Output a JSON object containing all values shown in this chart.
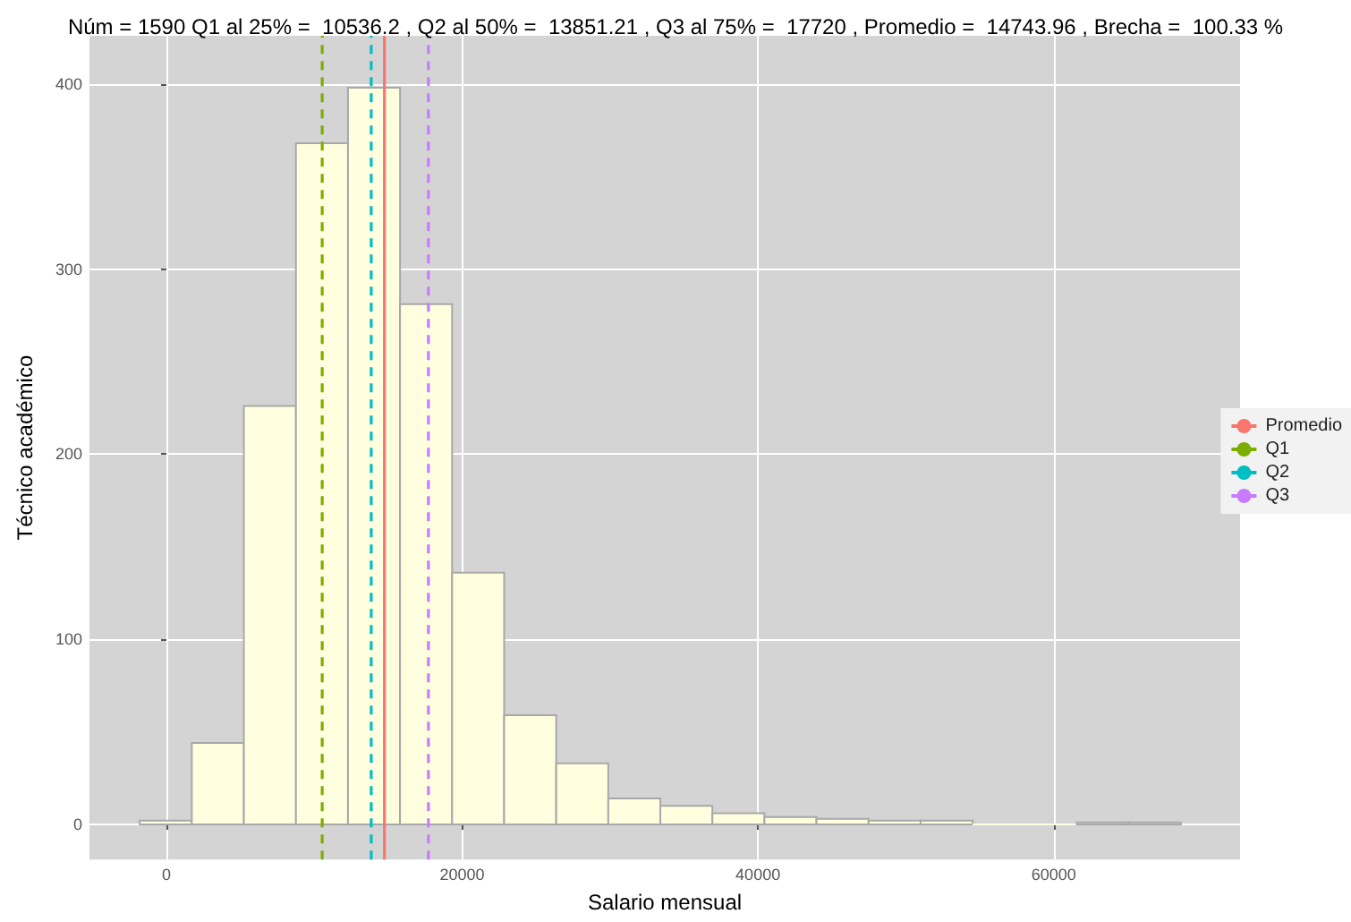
{
  "chart_data": {
    "type": "histogram",
    "title": "Núm = 1590 Q1 al 25% =  10536.2 , Q2 al 50% =  13851.21 , Q3 al 75% =  17720 , Promedio =  14743.96 , Brecha =  100.33 %",
    "xlabel": "Salario mensual",
    "ylabel": "Técnico académico",
    "bins": [
      -1800,
      1720,
      5240,
      8760,
      12280,
      15800,
      19320,
      22840,
      26360,
      29880,
      33400,
      36920,
      40440,
      43960,
      47480,
      51000,
      54520,
      58040,
      61560,
      65080,
      68600
    ],
    "xlim": [
      -5200,
      72600
    ],
    "xticks": [
      0,
      20000,
      40000,
      60000
    ],
    "ylim": [
      -19,
      426
    ],
    "yticks": [
      0,
      100,
      200,
      300,
      400
    ],
    "grid": true,
    "legend": "right",
    "series": [
      {
        "color": "#ffffe0",
        "values": [
          2,
          44,
          226,
          368,
          398,
          281,
          136,
          59,
          33,
          14,
          10,
          6,
          4,
          3,
          2,
          2,
          0,
          0,
          1,
          1
        ]
      },
      {
        "type": "line",
        "name": "Promedio",
        "color": "#f8766d",
        "line_style": "solid",
        "x": [
          14743.96,
          14743.96
        ],
        "values": [
          -19,
          426
        ]
      },
      {
        "type": "line",
        "name": "Q1",
        "color": "#7cae00",
        "line_style": "dashed",
        "x": [
          10536.2,
          10536.2
        ],
        "values": [
          -19,
          426
        ]
      },
      {
        "type": "line",
        "name": "Q2",
        "color": "#00bfc4",
        "line_style": "dashed",
        "x": [
          13851.21,
          13851.21
        ],
        "values": [
          -19,
          426
        ]
      },
      {
        "type": "line",
        "name": "Q3",
        "color": "#c77cff",
        "line_style": "dashed",
        "x": [
          17720,
          17720
        ],
        "values": [
          -19,
          426
        ]
      }
    ]
  }
}
